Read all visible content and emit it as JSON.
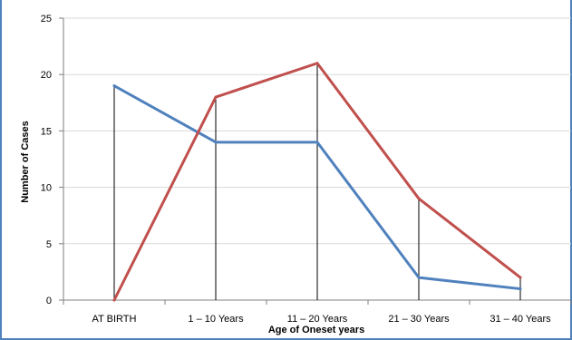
{
  "chart_data": {
    "type": "line",
    "title": "",
    "xlabel": "Age of Oneset years",
    "ylabel": "Number of Cases",
    "categories": [
      "AT BIRTH",
      "1 – 10 Years",
      "11 – 20 Years",
      "21 – 30 Years",
      "31 – 40 Years"
    ],
    "ylim": [
      0,
      25
    ],
    "yticks": [
      "0",
      "5",
      "10",
      "15",
      "20",
      "25"
    ],
    "grid": true,
    "legend": "none",
    "drop_lines": true,
    "series": [
      {
        "color": "#4f81bd",
        "values": [
          19,
          14,
          14,
          2,
          1
        ]
      },
      {
        "color": "#c0504d",
        "values": [
          0,
          18,
          21,
          9,
          2
        ]
      }
    ]
  }
}
